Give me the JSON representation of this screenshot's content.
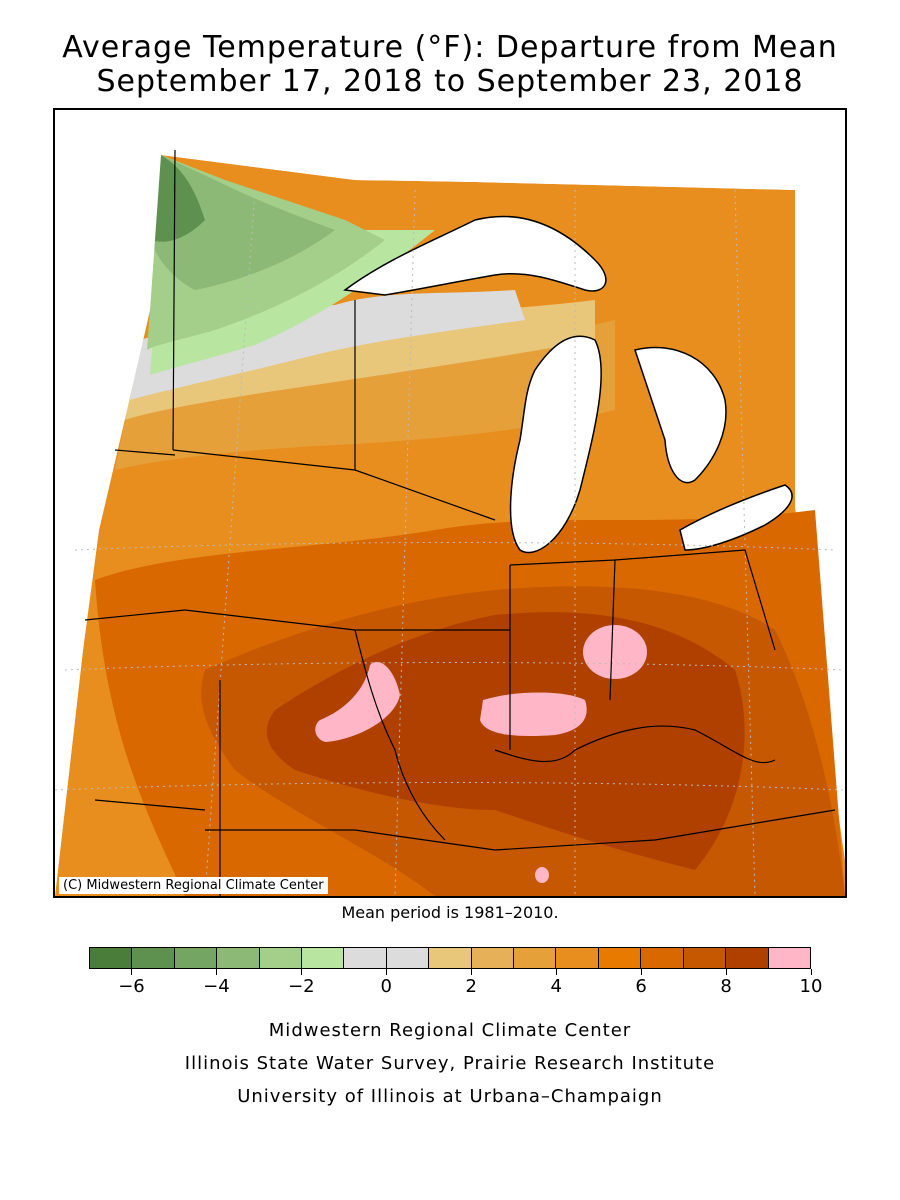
{
  "title_line1": "Average Temperature (°F): Departure from Mean",
  "title_line2": "September 17, 2018 to September 23, 2018",
  "copyright": "(C) Midwestern Regional Climate Center",
  "mean_period": "Mean period is 1981–2010.",
  "legend": {
    "colors": [
      "#4a7c3a",
      "#5e9150",
      "#74a562",
      "#8cba76",
      "#a3cf8b",
      "#b8e6a1",
      "#dcdcdc",
      "#dcdcdc",
      "#e8c67a",
      "#e6b059",
      "#e6a03a",
      "#e88e1e",
      "#e87a00",
      "#d96800",
      "#c55800",
      "#b04000",
      "#ffb6c6"
    ],
    "tick_values": [
      "−6",
      "−4",
      "−2",
      "0",
      "2",
      "4",
      "6",
      "8",
      "10"
    ]
  },
  "credits": [
    "Midwestern Regional Climate Center",
    "Illinois State Water Survey, Prairie Research Institute",
    "University of Illinois at Urbana–Champaign"
  ],
  "map": {
    "water_color": "#ffffff",
    "boundary_color": "#000000",
    "graticule_color": "#bbbbbb"
  }
}
